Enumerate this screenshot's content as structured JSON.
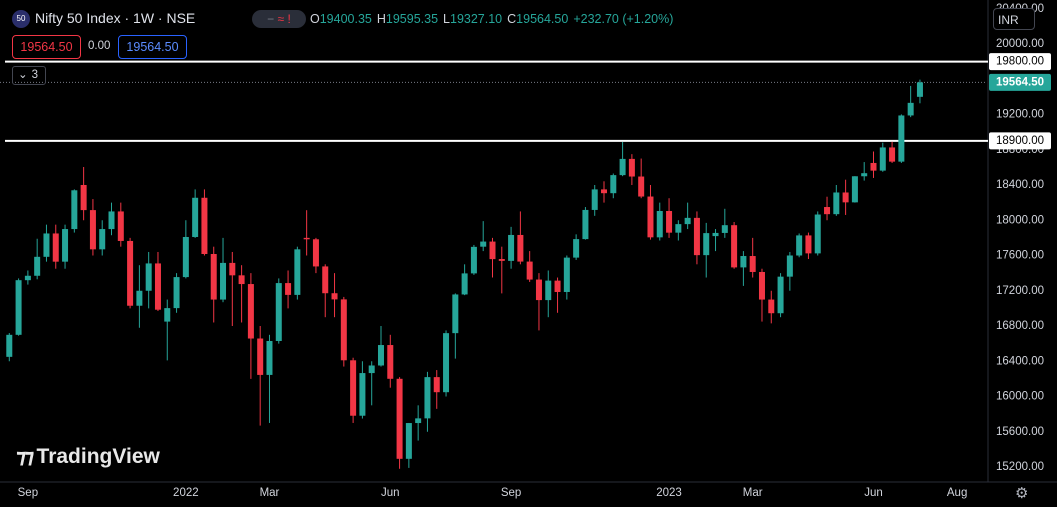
{
  "header": {
    "symbol_badge": "50",
    "title": "Nifty 50 Index · 1W · NSE",
    "ohlc": [
      {
        "label": "O",
        "value": "19400.35"
      },
      {
        "label": "H",
        "value": "19595.35"
      },
      {
        "label": "L",
        "value": "19327.10"
      },
      {
        "label": "C",
        "value": "19564.50"
      }
    ],
    "change": "+232.70 (+1.20%)",
    "sell_price": "19564.50",
    "spread": "0.00",
    "buy_price": "19564.50",
    "indicators_count": "3",
    "currency": "INR",
    "watermark": "TradingView"
  },
  "chart_data": {
    "type": "candlestick",
    "up_color": "#26a69a",
    "down_color": "#f23645",
    "grid": false,
    "open": [
      16450,
      16700,
      17320,
      17370,
      17585,
      17850,
      17530,
      17900,
      18400,
      18115,
      17670,
      17900,
      18100,
      17765,
      17030,
      17200,
      17510,
      16850,
      17003,
      17355,
      17810,
      18255,
      17617,
      17100,
      17516,
      17375,
      17276,
      16658,
      16245,
      16630,
      17287,
      17153,
      17800,
      17784,
      17476,
      17172,
      17102,
      16411,
      15782,
      16266,
      16352,
      16584,
      16201,
      15293,
      15699,
      15752,
      16220,
      16049,
      16719,
      17158,
      17397,
      17700,
      17758,
      17560,
      17539,
      17833,
      17531,
      17327,
      17094,
      17315,
      17186,
      17576,
      17786,
      18117,
      18350,
      18307,
      18512,
      18696,
      18496,
      18269,
      17806,
      18105,
      17859,
      17956,
      18027,
      17604,
      17820,
      17856,
      17944,
      17465,
      17594,
      17413,
      17100,
      16945,
      17360,
      17600,
      17828,
      17624,
      18150,
      18069,
      18315,
      18203,
      18499,
      18650,
      18563,
      18826,
      18665,
      19189,
      19400.35
    ],
    "high": [
      16720,
      17340,
      17430,
      17790,
      17950,
      17950,
      17950,
      18350,
      18604,
      18240,
      18000,
      18200,
      18200,
      17800,
      17490,
      17640,
      17640,
      17100,
      17400,
      18000,
      18350,
      18350,
      17700,
      17800,
      17640,
      17490,
      17400,
      16800,
      16700,
      17340,
      17430,
      17700,
      18114,
      17800,
      17500,
      17400,
      17130,
      16440,
      16400,
      16400,
      16800,
      16700,
      16220,
      15700,
      15900,
      16280,
      16300,
      16750,
      17170,
      17500,
      17720,
      17990,
      17800,
      17700,
      17925,
      18100,
      17650,
      17400,
      17430,
      17350,
      17600,
      17840,
      18150,
      18400,
      18442,
      18530,
      18888,
      18750,
      18700,
      18400,
      18200,
      18250,
      18000,
      18200,
      18100,
      17970,
      17900,
      18130,
      17980,
      17650,
      17800,
      17450,
      17200,
      17400,
      17640,
      17850,
      17860,
      18100,
      18267,
      18400,
      18460,
      18500,
      18660,
      18780,
      18880,
      18890,
      19201,
      19524,
      19595.35
    ],
    "low": [
      16400,
      16690,
      17270,
      17330,
      17530,
      17450,
      17450,
      17860,
      18000,
      17600,
      17600,
      17830,
      17700,
      17000,
      16780,
      17000,
      16970,
      16410,
      16950,
      17340,
      17800,
      17600,
      16840,
      17070,
      16800,
      16840,
      16200,
      15670,
      15700,
      16600,
      17000,
      17100,
      17600,
      17400,
      16900,
      16900,
      16340,
      15700,
      15750,
      15900,
      16340,
      16100,
      15180,
      15190,
      15500,
      15600,
      15860,
      16000,
      16430,
      17150,
      17380,
      17650,
      17350,
      17170,
      17450,
      17500,
      17300,
      16750,
      16900,
      16950,
      17100,
      17550,
      17780,
      18050,
      18200,
      18250,
      18500,
      18400,
      18250,
      17780,
      17770,
      17800,
      17770,
      17900,
      17500,
      17350,
      17650,
      17800,
      17450,
      17255,
      17350,
      16850,
      16830,
      16900,
      17200,
      17580,
      17560,
      17600,
      18000,
      18050,
      18060,
      18200,
      18450,
      18480,
      18550,
      18650,
      18650,
      19170,
      19327.1
    ],
    "close": [
      16700,
      17320,
      17370,
      17585,
      17850,
      17530,
      17900,
      18340,
      18115,
      17670,
      17900,
      18100,
      17765,
      17030,
      17200,
      17510,
      16985,
      17003,
      17355,
      17810,
      18255,
      17617,
      17100,
      17516,
      17375,
      17276,
      16658,
      16245,
      16630,
      17287,
      17153,
      17670,
      17784,
      17476,
      17172,
      17102,
      16411,
      15782,
      16266,
      16352,
      16584,
      16201,
      15293,
      15699,
      15752,
      16220,
      16049,
      16719,
      17158,
      17397,
      17698,
      17758,
      17559,
      17539,
      17833,
      17531,
      17327,
      17094,
      17315,
      17186,
      17576,
      17786,
      18117,
      18350,
      18307,
      18512,
      18696,
      18496,
      18269,
      17806,
      18105,
      17859,
      17956,
      18027,
      17604,
      17854,
      17856,
      17944,
      17465,
      17594,
      17413,
      17100,
      16945,
      17360,
      17600,
      17828,
      17624,
      18065,
      18069,
      18315,
      18203,
      18499,
      18534,
      18563,
      18826,
      18665,
      19189,
      19332,
      19564.5
    ],
    "xlim": [
      -1,
      105
    ],
    "xticks": [
      {
        "value": 2,
        "label": "Sep"
      },
      {
        "value": 19,
        "label": "2022"
      },
      {
        "value": 28,
        "label": "Mar"
      },
      {
        "value": 41,
        "label": "Jun"
      },
      {
        "value": 54,
        "label": "Sep"
      },
      {
        "value": 71,
        "label": "2023"
      },
      {
        "value": 80,
        "label": "Mar"
      },
      {
        "value": 93,
        "label": "Jun"
      },
      {
        "value": 102,
        "label": "Aug"
      }
    ],
    "ylim": [
      15030,
      20499
    ],
    "yticks": [
      {
        "value": 15200,
        "label": "15200.00"
      },
      {
        "value": 15600,
        "label": "15600.00"
      },
      {
        "value": 16000,
        "label": "16000.00"
      },
      {
        "value": 16400,
        "label": "16400.00"
      },
      {
        "value": 16800,
        "label": "16800.00"
      },
      {
        "value": 17200,
        "label": "17200.00"
      },
      {
        "value": 17600,
        "label": "17600.00"
      },
      {
        "value": 18000,
        "label": "18000.00"
      },
      {
        "value": 18400,
        "label": "18400.00"
      },
      {
        "value": 18800,
        "label": "18800.00"
      },
      {
        "value": 19200,
        "label": "19200.00"
      },
      {
        "value": 19600,
        "label": "19600.00"
      },
      {
        "value": 20000,
        "label": "20000.00"
      },
      {
        "value": 20400,
        "label": "20400.00"
      }
    ],
    "hlines": [
      {
        "value": 19800,
        "label": "19800.00"
      },
      {
        "value": 18900,
        "label": "18900.00"
      }
    ],
    "last_price": {
      "value": 19564.5,
      "label": "19564.50"
    }
  }
}
